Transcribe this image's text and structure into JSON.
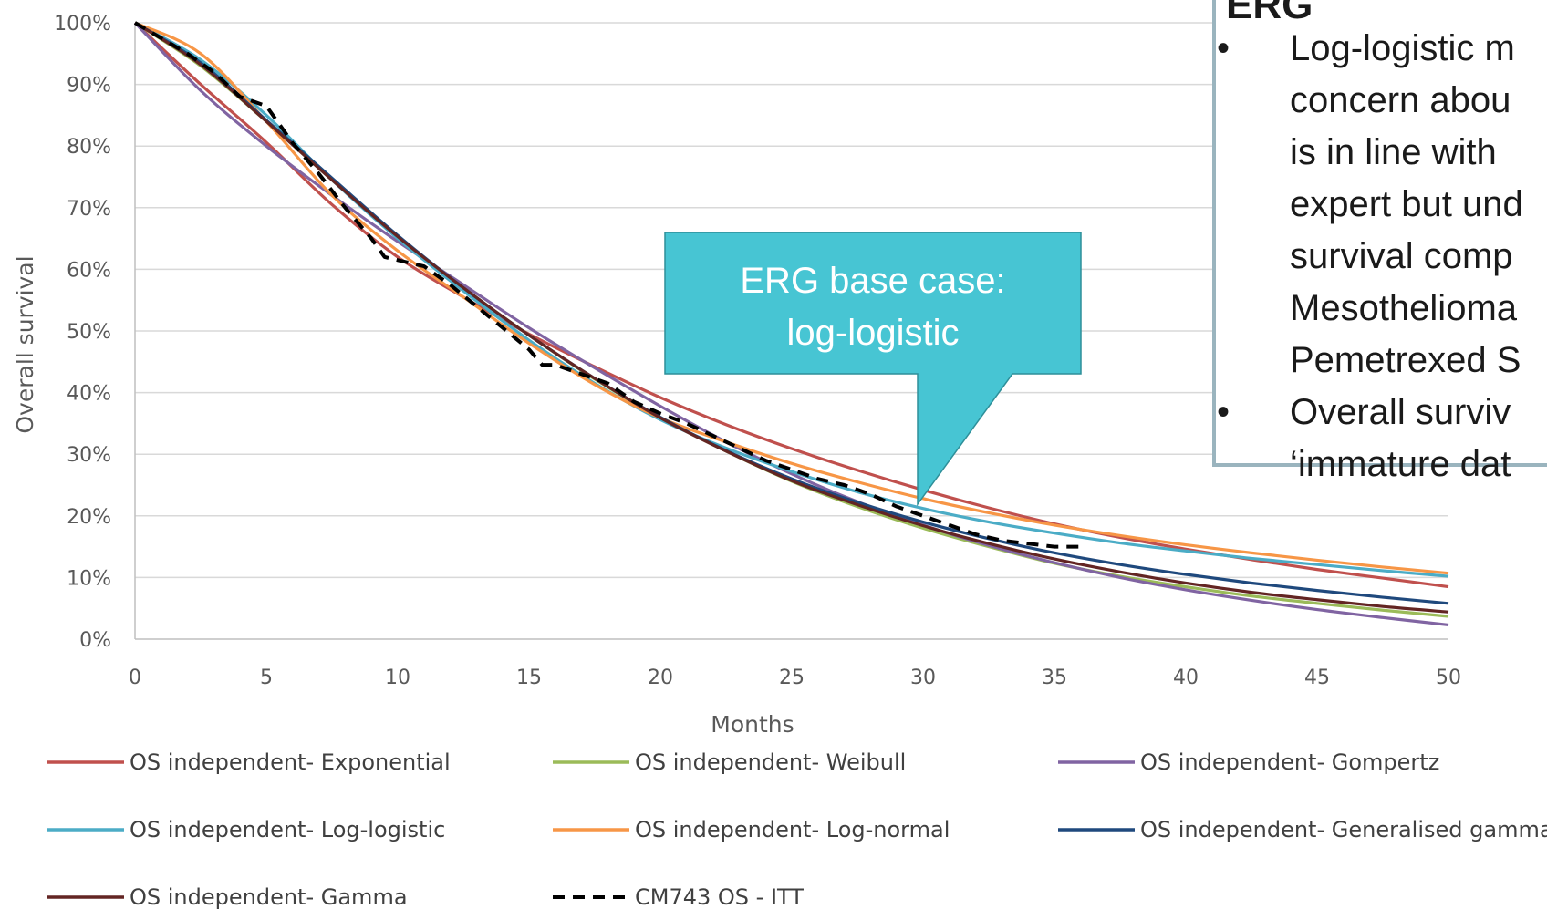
{
  "colors": {
    "gridline": "#d9d9d9",
    "axis": "#bfbfbf",
    "callout_fill": "#47c5d3",
    "callout_border": "#2e8f99",
    "note_border": "#9ab4be"
  },
  "callout": {
    "lines": [
      "ERG base case:",
      "log-logistic"
    ],
    "points_to": {
      "x": 29.8,
      "y": 21.5
    }
  },
  "note": {
    "heading": "ERG",
    "bullets": [
      {
        "lines": [
          "Log-logistic m",
          "concern abou",
          "is in line with",
          "expert but und",
          "survival comp",
          "Mesothelioma",
          "Pemetrexed S"
        ]
      },
      {
        "lines": [
          "Overall surviv",
          "‘immature dat"
        ]
      }
    ]
  },
  "chart_data": {
    "type": "line",
    "title": "",
    "xlabel": "Months",
    "ylabel": "Overall survival",
    "xlim": [
      0,
      50
    ],
    "ylim": [
      0,
      100
    ],
    "grid": true,
    "xticks": [
      0,
      5,
      10,
      15,
      20,
      25,
      30,
      35,
      40,
      45,
      50
    ],
    "xtick_labels": [
      "0",
      "5",
      "10",
      "15",
      "20",
      "25",
      "30",
      "35",
      "40",
      "45",
      "50"
    ],
    "yticks": [
      0,
      10,
      20,
      30,
      40,
      50,
      60,
      70,
      80,
      90,
      100
    ],
    "ytick_labels": [
      "0%",
      "10%",
      "20%",
      "30%",
      "40%",
      "50%",
      "60%",
      "70%",
      "80%",
      "90%",
      "100%"
    ],
    "legend_position": "bottom",
    "legend_columns": 3,
    "series": [
      {
        "name": "OS independent- Exponential",
        "color": "#c0504d",
        "dash": "solid",
        "x": [
          0,
          2.5,
          5,
          7.5,
          10,
          12.5,
          15,
          17.5,
          20,
          22.5,
          25,
          27.5,
          30,
          32.5,
          35,
          37.5,
          40,
          42.5,
          45,
          47.5,
          50
        ],
        "y": [
          100,
          90,
          80.6,
          70.5,
          62,
          55.5,
          49.5,
          44.2,
          39.2,
          34.8,
          30.9,
          27.4,
          24.2,
          21.3,
          18.7,
          16.5,
          14.6,
          12.9,
          11.3,
          9.9,
          8.5
        ]
      },
      {
        "name": "OS independent- Weibull",
        "color": "#9bbb59",
        "dash": "solid",
        "x": [
          0,
          2.5,
          5,
          7.5,
          10,
          12.5,
          15,
          17.5,
          20,
          22.5,
          25,
          27.5,
          30,
          32.5,
          35,
          37.5,
          40,
          42.5,
          45,
          47.5,
          50
        ],
        "y": [
          100,
          93,
          84,
          74.5,
          65.3,
          57,
          49.3,
          42.2,
          35.9,
          30.5,
          25.6,
          21.5,
          18,
          15,
          12.3,
          10.2,
          8.5,
          7,
          5.8,
          4.7,
          3.7
        ]
      },
      {
        "name": "OS independent- Gompertz",
        "color": "#8064a2",
        "dash": "solid",
        "x": [
          0,
          2.5,
          5,
          7.5,
          10,
          12.5,
          15,
          17.5,
          20,
          22.5,
          25,
          27.5,
          30,
          32.5,
          35,
          37.5,
          40,
          42.5,
          45,
          47.5,
          50
        ],
        "y": [
          100,
          89,
          80,
          72,
          64.5,
          57.5,
          50.5,
          44,
          37.8,
          32,
          26.8,
          22.3,
          18.5,
          15.2,
          12.4,
          10,
          8,
          6.3,
          4.8,
          3.5,
          2.3
        ]
      },
      {
        "name": "OS independent- Log-logistic",
        "color": "#4bacc6",
        "dash": "solid",
        "x": [
          0,
          2.5,
          5,
          7.5,
          10,
          12.5,
          15,
          17.5,
          20,
          22.5,
          25,
          27.5,
          30,
          32.5,
          35,
          37.5,
          40,
          42.5,
          45,
          47.5,
          50
        ],
        "y": [
          100,
          94,
          85,
          74.5,
          65,
          56.5,
          48.5,
          41.5,
          35.6,
          31,
          27.2,
          23.9,
          21.2,
          19,
          17.2,
          15.6,
          14.3,
          13.1,
          12.1,
          11.1,
          10.2
        ]
      },
      {
        "name": "OS independent- Log-normal",
        "color": "#f79646",
        "dash": "solid",
        "x": [
          0,
          2.5,
          5,
          7.5,
          10,
          12.5,
          15,
          17.5,
          20,
          22.5,
          25,
          27.5,
          30,
          32.5,
          35,
          37.5,
          40,
          42.5,
          45,
          47.5,
          50
        ],
        "y": [
          100,
          95,
          84,
          72,
          63,
          55.5,
          48,
          41.3,
          35.9,
          32,
          28.5,
          25.5,
          22.8,
          20.5,
          18.5,
          16.8,
          15.3,
          14,
          12.8,
          11.7,
          10.7
        ]
      },
      {
        "name": "OS independent- Generalised gamma",
        "color": "#1f497d",
        "dash": "solid",
        "x": [
          0,
          2.5,
          5,
          7.5,
          10,
          12.5,
          15,
          17.5,
          20,
          22.5,
          25,
          27.5,
          30,
          32.5,
          35,
          37.5,
          40,
          42.5,
          45,
          47.5,
          50
        ],
        "y": [
          100,
          93.5,
          84.2,
          74.8,
          65.5,
          57,
          49.3,
          42.3,
          36,
          30.6,
          26,
          22.2,
          19,
          16.3,
          14,
          12.1,
          10.5,
          9.1,
          7.9,
          6.8,
          5.8
        ]
      },
      {
        "name": "OS independent- Gamma",
        "color": "#632523",
        "dash": "solid",
        "x": [
          0,
          2.5,
          5,
          7.5,
          10,
          12.5,
          15,
          17.5,
          20,
          22.5,
          25,
          27.5,
          30,
          32.5,
          35,
          37.5,
          40,
          42.5,
          45,
          47.5,
          50
        ],
        "y": [
          100,
          93.2,
          84,
          74.5,
          65.3,
          57,
          49.3,
          42.3,
          35.9,
          30.5,
          25.7,
          21.8,
          18.4,
          15.5,
          13,
          10.9,
          9.1,
          7.6,
          6.4,
          5.3,
          4.4
        ]
      },
      {
        "name": "CM743 OS - ITT",
        "color": "#000000",
        "dash": "dashed",
        "x": [
          0,
          1,
          2,
          3,
          4,
          5,
          5.5,
          6,
          7,
          8,
          9,
          9.5,
          10,
          11,
          12,
          13,
          14,
          15,
          15.5,
          16,
          17,
          18,
          19,
          20,
          21,
          22,
          23,
          24,
          25,
          26,
          27,
          28,
          29,
          30,
          31,
          32,
          33,
          34,
          35,
          36
        ],
        "y": [
          100,
          97.5,
          95,
          92,
          88,
          86.5,
          83.5,
          80.5,
          75.5,
          70,
          65,
          62,
          61.5,
          60.5,
          57.5,
          54,
          50.5,
          47,
          44.5,
          44.5,
          43,
          41.5,
          38.5,
          36.6,
          35,
          33,
          31,
          29,
          27.5,
          26,
          25,
          23.5,
          21.5,
          20,
          18.5,
          17,
          16,
          15.5,
          15,
          15
        ]
      }
    ]
  }
}
